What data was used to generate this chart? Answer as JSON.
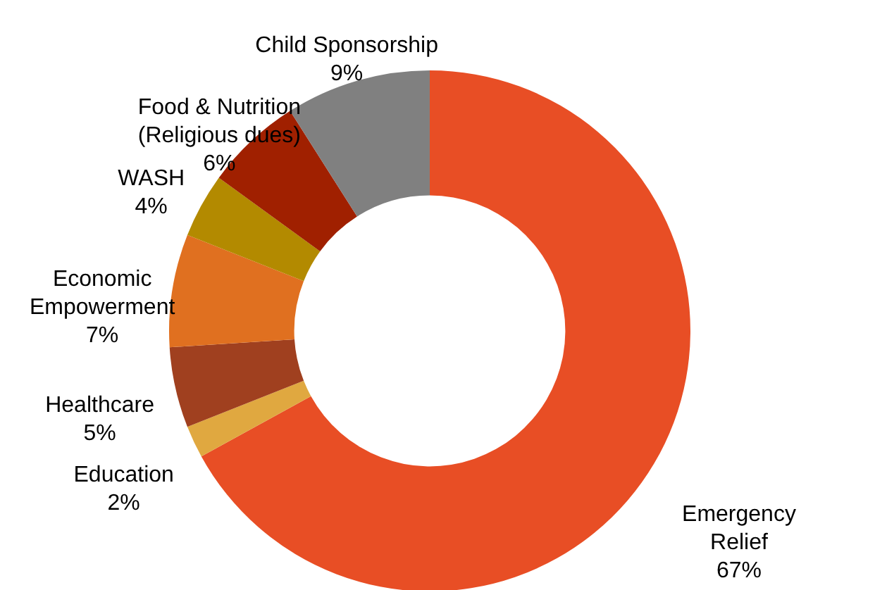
{
  "chart_data": {
    "type": "donut",
    "categories": [
      "Emergency\nRelief",
      "Education",
      "Healthcare",
      "Economic\nEmpowerment",
      "WASH",
      "Food & Nutrition\n(Religious dues)",
      "Child Sponsorship"
    ],
    "values": [
      67,
      2,
      5,
      7,
      4,
      6,
      9
    ],
    "colors": [
      "#e84e25",
      "#e0a840",
      "#a0401f",
      "#e07020",
      "#b38a00",
      "#a02000",
      "#808080"
    ],
    "value_labels": [
      "67%",
      "2%",
      "5%",
      "7%",
      "4%",
      "6%",
      "9%"
    ]
  }
}
